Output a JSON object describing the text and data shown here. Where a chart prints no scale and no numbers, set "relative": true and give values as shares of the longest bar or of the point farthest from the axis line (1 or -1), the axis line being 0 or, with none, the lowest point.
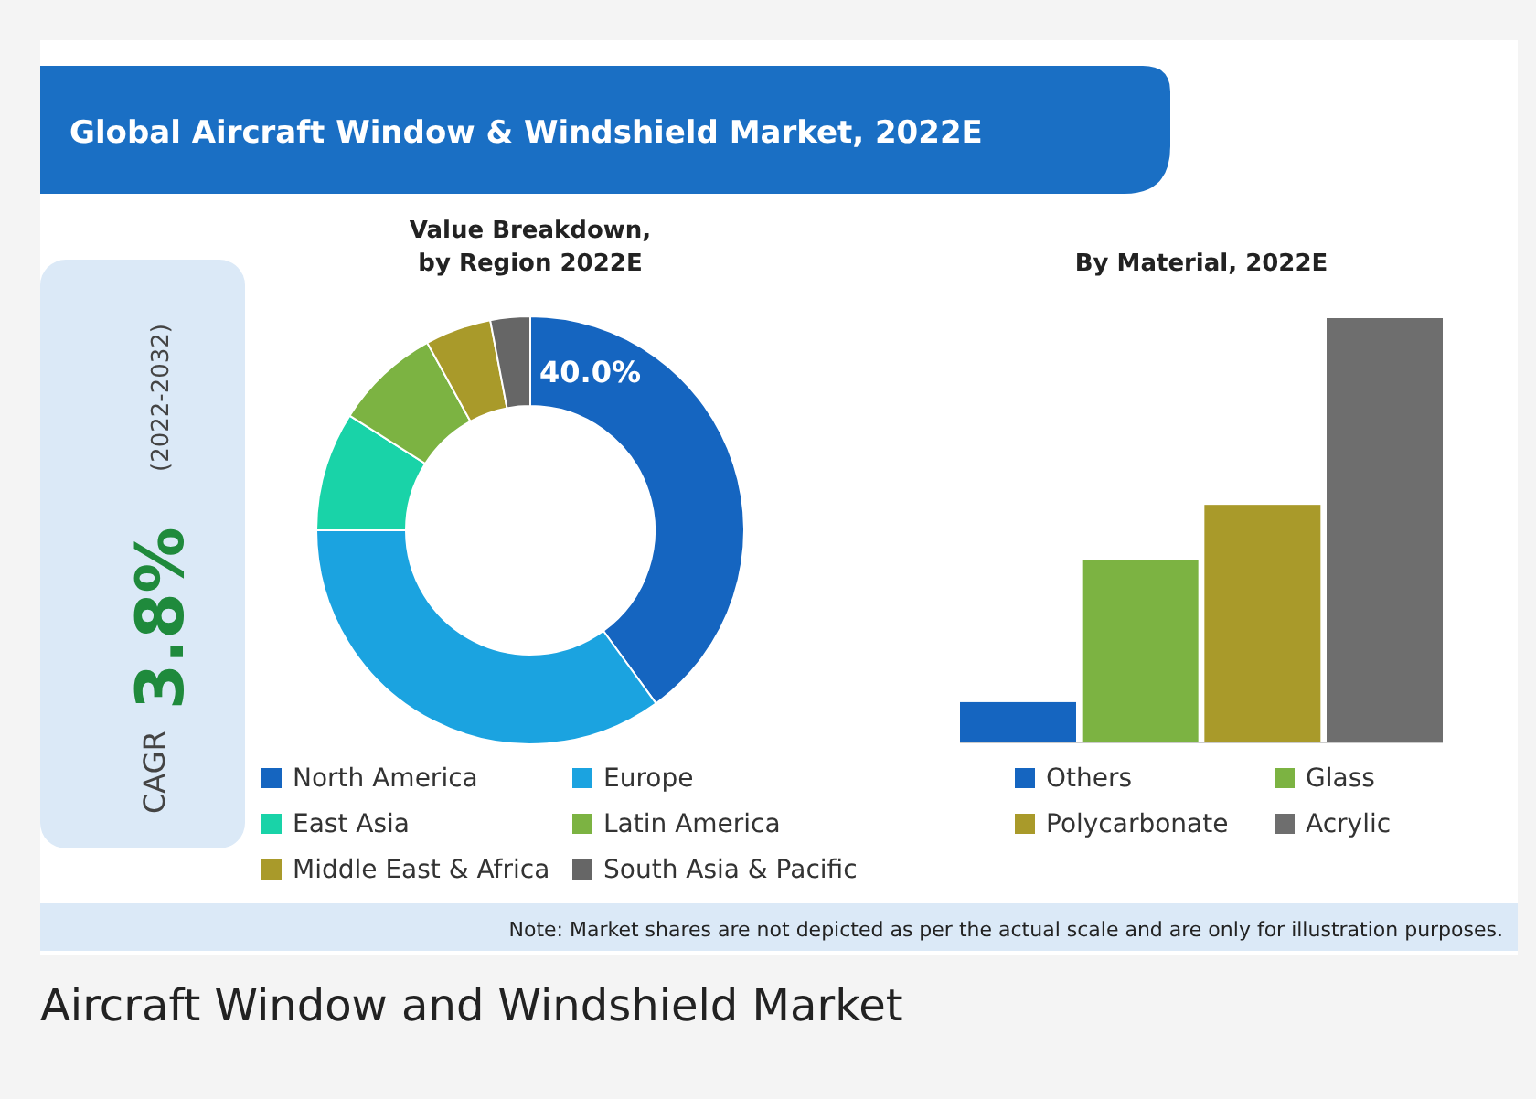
{
  "chart_data": [
    {
      "type": "other",
      "title": "Global Aircraft Window & Windshield Market, 2022E",
      "annotations": [
        "CAGR",
        "3.8%",
        "(2022-2032)",
        "Note: Market shares are not depicted as per the actual scale and are only for illustration purposes.",
        "Aircraft Window and Windshield Market"
      ]
    },
    {
      "type": "donut",
      "title": "Value Breakdown,\nby Region 2022E",
      "categories": [
        "North America",
        "Europe",
        "East Asia",
        "Latin America",
        "Middle East & Africa",
        "South Asia & Pacific"
      ],
      "values": [
        40.0,
        35,
        9,
        8,
        5,
        3
      ],
      "colors": [
        "#1565c0",
        "#1ba3e0",
        "#19d3a8",
        "#7cb342",
        "#a99a2a",
        "#666666"
      ],
      "value_labels": [
        "40.0%",
        null,
        null,
        null,
        null,
        null
      ],
      "legend": "bottom"
    },
    {
      "type": "bar",
      "title": "By Material, 2022E",
      "categories": [
        null
      ],
      "series": [
        {
          "name": "Others",
          "color": "#1565c0",
          "values": [
            0.095
          ]
        },
        {
          "name": "Glass",
          "color": "#7cb342",
          "values": [
            0.43
          ]
        },
        {
          "name": "Polycarbonate",
          "color": "#a99a2a",
          "values": [
            0.56
          ]
        },
        {
          "name": "Acrylic",
          "color": "#6e6e6e",
          "values": [
            1
          ]
        }
      ],
      "relative": true,
      "legend": "bottom"
    }
  ]
}
